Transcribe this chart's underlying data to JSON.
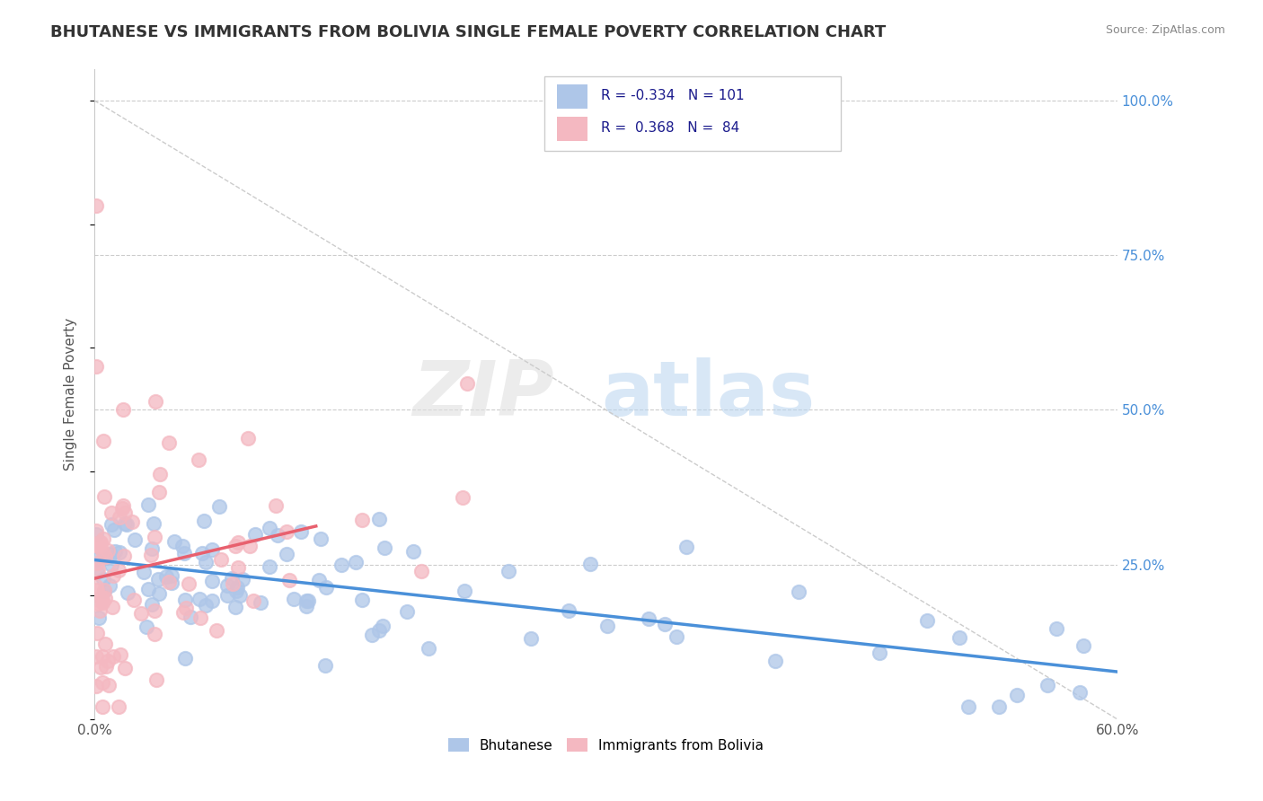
{
  "title": "BHUTANESE VS IMMIGRANTS FROM BOLIVIA SINGLE FEMALE POVERTY CORRELATION CHART",
  "source": "Source: ZipAtlas.com",
  "ylabel": "Single Female Poverty",
  "xlim": [
    0.0,
    0.6
  ],
  "ylim": [
    0.0,
    1.05
  ],
  "x_ticks": [
    0.0,
    0.1,
    0.2,
    0.3,
    0.4,
    0.5,
    0.6
  ],
  "x_tick_labels": [
    "0.0%",
    "",
    "",
    "",
    "",
    "",
    "60.0%"
  ],
  "y_tick_labels_right": [
    "100.0%",
    "75.0%",
    "50.0%",
    "25.0%"
  ],
  "y_ticks_right": [
    1.0,
    0.75,
    0.5,
    0.25
  ],
  "R_bhutanese": -0.334,
  "N_bhutanese": 101,
  "R_bolivia": 0.368,
  "N_bolivia": 84,
  "color_bhutanese": "#aec6e8",
  "color_bolivia": "#f4b8c1",
  "trendline_color_bhutanese": "#4a90d9",
  "trendline_color_bolivia": "#e8606e",
  "background_color": "#ffffff",
  "grid_color": "#cccccc",
  "title_color": "#333333"
}
